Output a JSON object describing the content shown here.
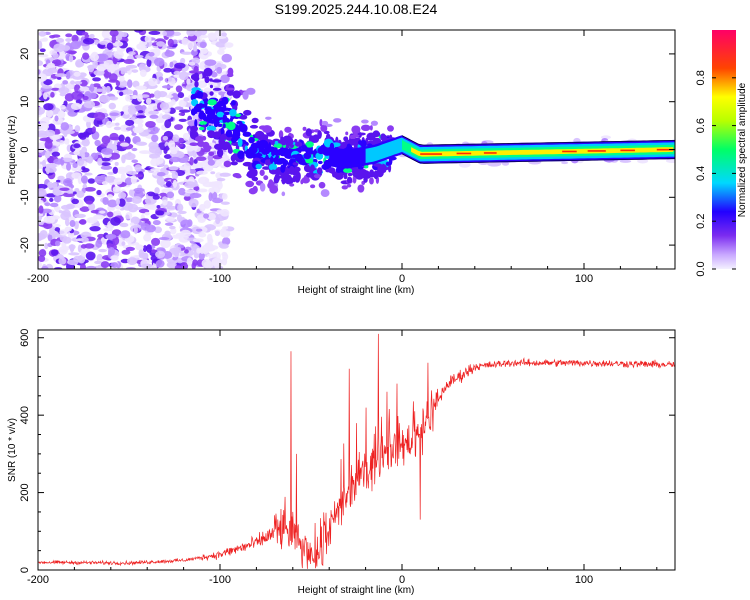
{
  "title": "S199.2025.244.10.08.E24",
  "chart_data": [
    {
      "type": "heatmap",
      "name": "spectrogram",
      "xlabel": "Height of straight line (km)",
      "ylabel": "Frequency (Hz)",
      "xlim": [
        -200,
        150
      ],
      "ylim": [
        -25,
        25
      ],
      "x_ticks": [
        -200,
        -100,
        0,
        100
      ],
      "y_ticks": [
        -20,
        -10,
        0,
        10,
        20
      ],
      "colorbar": {
        "label": "Normalized spectral amplitude",
        "range": [
          0.0,
          1.0
        ],
        "ticks": [
          0.0,
          0.2,
          0.4,
          0.6,
          0.8
        ],
        "colormap": [
          "#e8e0ff",
          "#8a2be2",
          "#2200ff",
          "#00d8ff",
          "#00ff66",
          "#ffff00",
          "#ff2200",
          "#ff0066"
        ]
      },
      "features": {
        "noise_region_x": [
          -200,
          -110
        ],
        "trend_points": [
          {
            "x": -110,
            "y": 9
          },
          {
            "x": -95,
            "y": 6
          },
          {
            "x": -80,
            "y": 0
          },
          {
            "x": -65,
            "y": -2
          },
          {
            "x": -50,
            "y": -1
          },
          {
            "x": -30,
            "y": -2
          },
          {
            "x": -15,
            "y": -1
          },
          {
            "x": 0,
            "y": 1
          },
          {
            "x": 10,
            "y": -1
          },
          {
            "x": 150,
            "y": 0
          }
        ],
        "peak_amplitude_x": [
          90,
          110
        ]
      }
    },
    {
      "type": "line",
      "name": "snr",
      "xlabel": "Height of straight line (km)",
      "ylabel": "SNR (10 * v/v)",
      "xlim": [
        -200,
        150
      ],
      "ylim": [
        0,
        620
      ],
      "x_ticks": [
        -200,
        -100,
        0,
        100
      ],
      "y_ticks": [
        0,
        200,
        400,
        600
      ],
      "color": "#ee2222",
      "envelope": [
        {
          "x": -200,
          "y": 20
        },
        {
          "x": -150,
          "y": 18
        },
        {
          "x": -120,
          "y": 25
        },
        {
          "x": -100,
          "y": 40
        },
        {
          "x": -80,
          "y": 70
        },
        {
          "x": -65,
          "y": 110
        },
        {
          "x": -55,
          "y": 60
        },
        {
          "x": -45,
          "y": 40
        },
        {
          "x": -35,
          "y": 150
        },
        {
          "x": -25,
          "y": 230
        },
        {
          "x": -15,
          "y": 280
        },
        {
          "x": -5,
          "y": 320
        },
        {
          "x": 5,
          "y": 330
        },
        {
          "x": 15,
          "y": 400
        },
        {
          "x": 25,
          "y": 480
        },
        {
          "x": 40,
          "y": 525
        },
        {
          "x": 60,
          "y": 535
        },
        {
          "x": 100,
          "y": 535
        },
        {
          "x": 150,
          "y": 530
        }
      ],
      "spikes": [
        {
          "x": -61,
          "y": 565
        },
        {
          "x": -58,
          "y": 300
        },
        {
          "x": -29,
          "y": 520
        },
        {
          "x": -13,
          "y": 610
        },
        {
          "x": 7,
          "y": 410
        },
        {
          "x": 10,
          "y": 130
        }
      ]
    }
  ]
}
